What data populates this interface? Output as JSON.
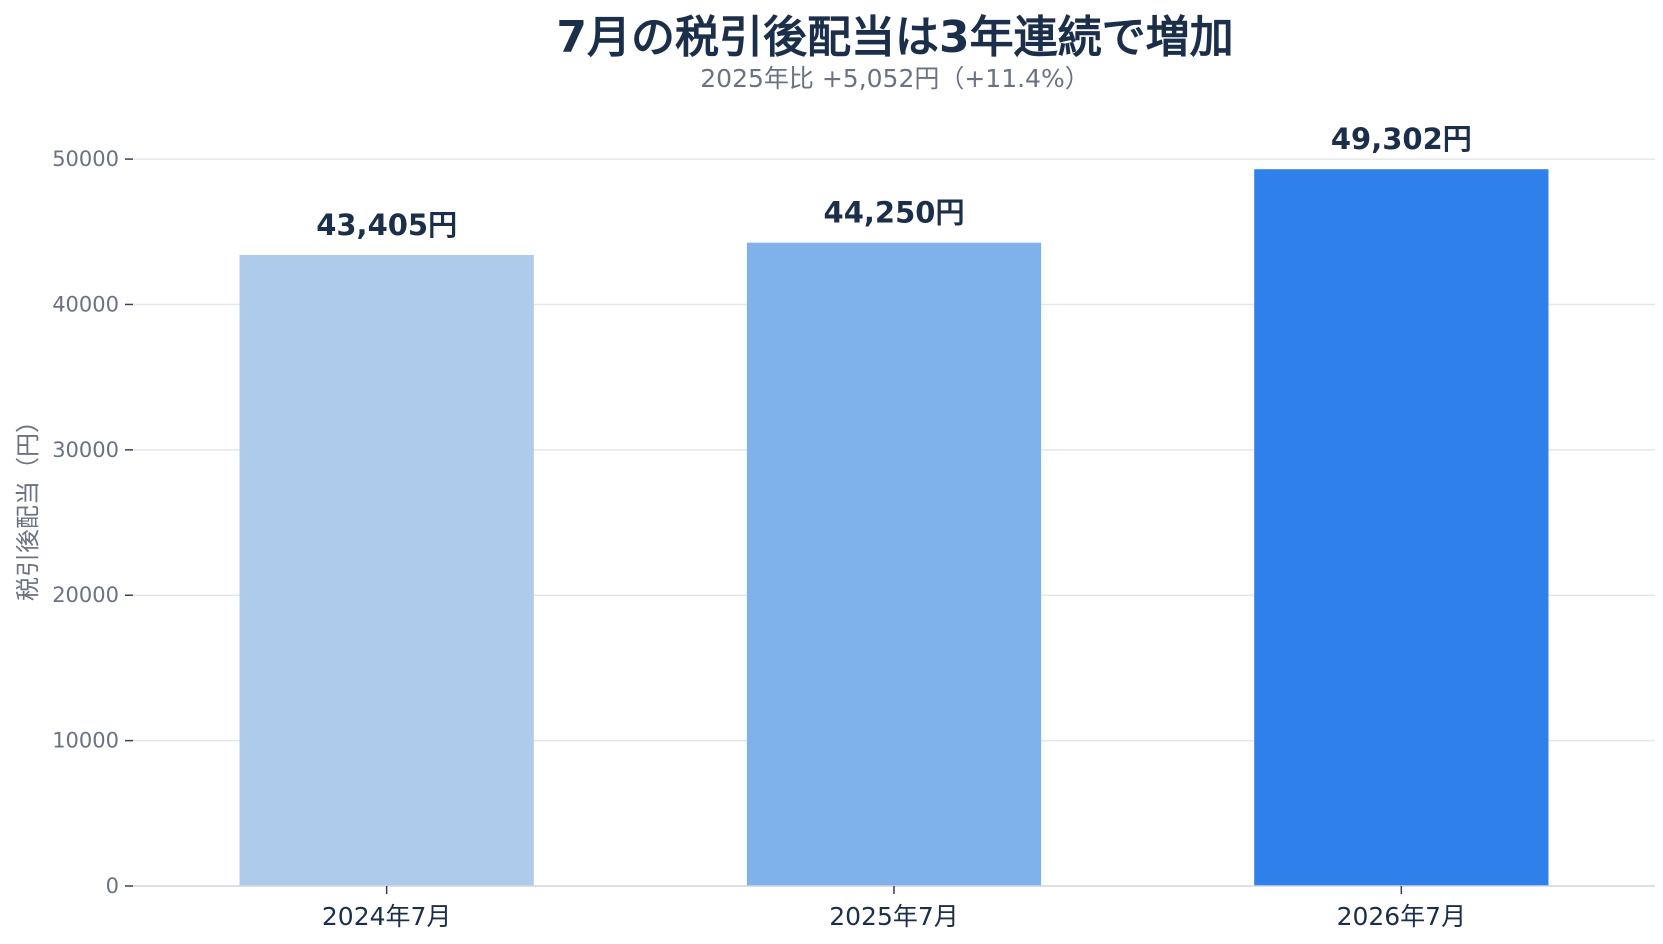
{
  "chart_data": {
    "type": "bar",
    "title": "7月の税引後配当は3年連続で増加",
    "subtitle": "2025年比 +5,052円（+11.4%）",
    "ylabel": "税引後配当（円）",
    "xlabel": "",
    "categories": [
      "2024年7月",
      "2025年7月",
      "2026年7月"
    ],
    "values": [
      43405,
      44250,
      49302
    ],
    "data_labels": [
      "43,405円",
      "44,250円",
      "49,302円"
    ],
    "colors": [
      "#aecbec",
      "#7fb2eb",
      "#2f80ea"
    ],
    "ylim": [
      0,
      52000
    ],
    "yticks": [
      0,
      10000,
      20000,
      30000,
      40000,
      50000
    ],
    "ytick_labels": [
      "0",
      "10000",
      "20000",
      "30000",
      "40000",
      "50000"
    ],
    "grid": true,
    "legend": "none"
  }
}
